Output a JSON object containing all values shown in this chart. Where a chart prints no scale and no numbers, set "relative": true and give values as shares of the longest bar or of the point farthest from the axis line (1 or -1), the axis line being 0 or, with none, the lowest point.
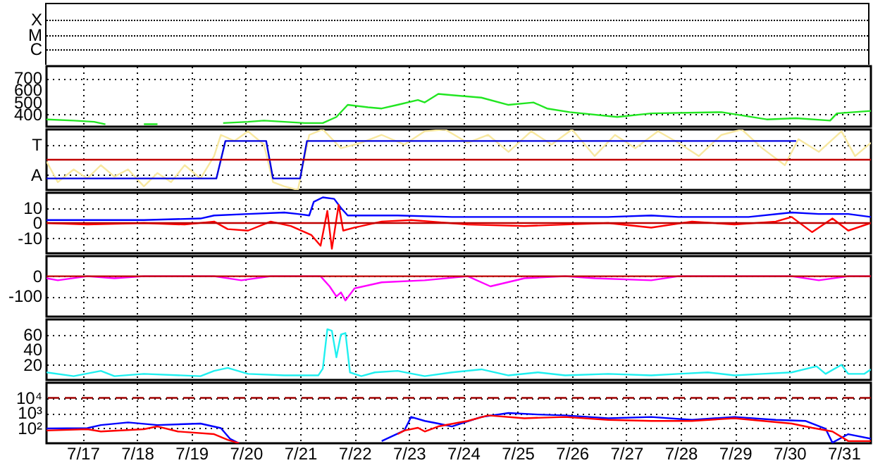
{
  "chart_data": [
    {
      "type": "other",
      "annotations": [
        "X",
        "M",
        "C"
      ]
    },
    {
      "type": "line",
      "xlim": [
        "--07-16T08:00",
        "--07-31T12:00"
      ],
      "xticks": [
        {
          "value": "--07-17",
          "label": null
        },
        {
          "value": "--07-18",
          "label": null
        },
        {
          "value": "--07-19",
          "label": null
        },
        {
          "value": "--07-20",
          "label": null
        },
        {
          "value": "--07-21",
          "label": null
        },
        {
          "value": "--07-22",
          "label": null
        },
        {
          "value": "--07-23",
          "label": null
        },
        {
          "value": "--07-24",
          "label": null
        },
        {
          "value": "--07-25",
          "label": null
        },
        {
          "value": "--07-26",
          "label": null
        },
        {
          "value": "--07-27",
          "label": null
        },
        {
          "value": "--07-28",
          "label": null
        },
        {
          "value": "--07-29",
          "label": null
        },
        {
          "value": "--07-30",
          "label": null
        },
        {
          "value": "--07-31",
          "label": null
        }
      ],
      "ylim": [
        300,
        800
      ],
      "yticks": [
        400,
        500,
        600,
        700
      ],
      "grid": true,
      "tick_labels": "y",
      "series": [
        {
          "color": "#22e622",
          "x": [
            "--07-16T08:00",
            "--07-16T20:00",
            "--07-17T05:00",
            "--07-17T10:00",
            "--07-17T19:00",
            "--07-18T03:00",
            "--07-18T09:00",
            "--07-19T00:00",
            "--07-19T14:00",
            "--07-20T01:00",
            "--07-20T08:00",
            "--07-20T17:00",
            "--07-21T02:00",
            "--07-21T10:00",
            "--07-21T16:00",
            "--07-21T21:00",
            "--07-22T06:00",
            "--07-22T12:00",
            "--07-22T19:00",
            "--07-23T04:00",
            "--07-23T07:00",
            "--07-23T13:00",
            "--07-23T19:00",
            "--07-24T08:00",
            "--07-24T20:00",
            "--07-25T07:00",
            "--07-25T13:00",
            "--07-25T23:00",
            "--07-26T20:00",
            "--07-27T11:00",
            "--07-28T18:00",
            "--07-29T14:00",
            "--07-30T03:00",
            "--07-30T18:00",
            "--07-30T21:00",
            "--07-31T12:00"
          ],
          "values": [
            360,
            350,
            340,
            320,
            null,
            320,
            320,
            null,
            330,
            340,
            350,
            340,
            330,
            330,
            380,
            480,
            460,
            450,
            480,
            520,
            500,
            570,
            560,
            540,
            480,
            500,
            450,
            420,
            380,
            410,
            420,
            360,
            370,
            350,
            410,
            430
          ]
        }
      ]
    },
    {
      "type": "line",
      "relative": true,
      "annotations": [
        "T",
        "A"
      ],
      "xlim": [
        "--07-16T08:00",
        "--07-31T12:00"
      ],
      "xticks": [
        {
          "value": "--07-17",
          "label": null
        },
        {
          "value": "--07-18",
          "label": null
        },
        {
          "value": "--07-19",
          "label": null
        },
        {
          "value": "--07-20",
          "label": null
        },
        {
          "value": "--07-21",
          "label": null
        },
        {
          "value": "--07-22",
          "label": null
        },
        {
          "value": "--07-23",
          "label": null
        },
        {
          "value": "--07-24",
          "label": null
        },
        {
          "value": "--07-25",
          "label": null
        },
        {
          "value": "--07-26",
          "label": null
        },
        {
          "value": "--07-27",
          "label": null
        },
        {
          "value": "--07-28",
          "label": null
        },
        {
          "value": "--07-29",
          "label": null
        },
        {
          "value": "--07-30",
          "label": null
        },
        {
          "value": "--07-31",
          "label": null
        }
      ],
      "grid": true,
      "tick_labels": "y",
      "ref_lines": [
        {
          "axis": "y",
          "value": 0.5,
          "color": "#c00000"
        }
      ],
      "series": [
        {
          "color": "#f8e8a0",
          "x": [
            "--07-16T08:00",
            "--07-16T13:00",
            "--07-16T20:00",
            "--07-17T02:00",
            "--07-17T08:00",
            "--07-17T14:00",
            "--07-17T20:00",
            "--07-18T03:00",
            "--07-18T09:00",
            "--07-18T15:00",
            "--07-18T21:00",
            "--07-19T04:00",
            "--07-19T10:00",
            "--07-19T13:00",
            "--07-19T19:00",
            "--07-20T01:00",
            "--07-20T08:00",
            "--07-20T12:00",
            "--07-20T17:00",
            "--07-20T23:00",
            "--07-21T04:00",
            "--07-21T10:00",
            "--07-21T18:00",
            "--07-22T03:00",
            "--07-22T12:00",
            "--07-22T22:00",
            "--07-23T07:00",
            "--07-23T16:00",
            "--07-24T02:00",
            "--07-24T11:00",
            "--07-24T20:00",
            "--07-25T06:00",
            "--07-25T15:00",
            "--07-26T00:00",
            "--07-26T10:00",
            "--07-26T19:00",
            "--07-27T04:00",
            "--07-27T14:00",
            "--07-27T23:00",
            "--07-28T08:00",
            "--07-28T18:00",
            "--07-29T03:00",
            "--07-29T12:00",
            "--07-29T22:00",
            "--07-30T04:00",
            "--07-30T13:00",
            "--07-30T23:00",
            "--07-31T05:00",
            "--07-31T12:00"
          ],
          "values": [
            0.47,
            0.13,
            0.34,
            0.19,
            0.41,
            0.22,
            0.34,
            0.06,
            0.28,
            0.13,
            0.41,
            0.19,
            0.56,
            0.91,
            0.81,
            0.97,
            0.75,
            0.13,
            0.06,
            0,
            0.91,
            1,
            0.69,
            0.78,
            0.91,
            0.75,
            0.97,
            1,
            0.78,
            0.91,
            0.63,
            0.97,
            0.75,
            1,
            0.56,
            0.91,
            0.69,
            0.97,
            0.78,
            0.56,
            0.91,
            1,
            0.69,
            0.41,
            0.84,
            0.63,
            0.97,
            0.56,
            0.78
          ]
        },
        {
          "color": "#0000e0",
          "x": [
            "--07-16T08:00",
            "--07-19T11:00",
            "--07-19T15:00",
            "--07-20T09:00",
            "--07-20T12:00",
            "--07-21T00:00",
            "--07-21T03:00",
            "--07-30T03:00"
          ],
          "values": [
            0.19,
            0.19,
            0.81,
            0.81,
            0.19,
            0.19,
            0.81,
            0.81
          ]
        }
      ]
    },
    {
      "type": "line",
      "xlim": [
        "--07-16T08:00",
        "--07-31T12:00"
      ],
      "xticks": [
        {
          "value": "--07-17",
          "label": null
        },
        {
          "value": "--07-18",
          "label": null
        },
        {
          "value": "--07-19",
          "label": null
        },
        {
          "value": "--07-20",
          "label": null
        },
        {
          "value": "--07-21",
          "label": null
        },
        {
          "value": "--07-22",
          "label": null
        },
        {
          "value": "--07-23",
          "label": null
        },
        {
          "value": "--07-24",
          "label": null
        },
        {
          "value": "--07-25",
          "label": null
        },
        {
          "value": "--07-26",
          "label": null
        },
        {
          "value": "--07-27",
          "label": null
        },
        {
          "value": "--07-28",
          "label": null
        },
        {
          "value": "--07-29",
          "label": null
        },
        {
          "value": "--07-30",
          "label": null
        },
        {
          "value": "--07-31",
          "label": null
        }
      ],
      "ylim": [
        -20,
        20
      ],
      "yticks": [
        -10,
        0,
        10
      ],
      "grid": true,
      "tick_labels": "y",
      "ref_lines": [
        {
          "axis": "y",
          "value": 0,
          "color": "#c00000"
        }
      ],
      "series": [
        {
          "color": "#0000ff",
          "x": [
            "--07-16T08:00",
            "--07-17T02:00",
            "--07-18T03:00",
            "--07-19T04:00",
            "--07-19T10:00",
            "--07-20T01:00",
            "--07-20T17:00",
            "--07-20T23:00",
            "--07-21T04:00",
            "--07-21T06:00",
            "--07-21T10:00",
            "--07-21T15:00",
            "--07-21T18:00",
            "--07-21T21:00",
            "--07-22T19:00",
            "--07-23T19:00",
            "--07-25T09:00",
            "--07-26T16:00",
            "--07-27T11:00",
            "--07-27T23:00",
            "--07-29T06:00",
            "--07-30T01:00",
            "--07-30T13:00",
            "--07-31T02:00",
            "--07-31T12:00"
          ],
          "values": [
            2,
            2,
            2,
            3,
            5,
            6,
            7,
            6,
            5,
            14,
            17,
            16,
            10,
            5,
            5,
            4,
            4,
            4,
            5,
            4,
            4,
            7,
            6,
            6,
            4
          ]
        },
        {
          "color": "#ff0000",
          "x": [
            "--07-16T08:00",
            "--07-17T02:00",
            "--07-18T03:00",
            "--07-18T21:00",
            "--07-19T10:00",
            "--07-19T16:00",
            "--07-20T01:00",
            "--07-20T11:00",
            "--07-20T20:00",
            "--07-21T05:00",
            "--07-21T09:00",
            "--07-21T12:00",
            "--07-21T14:00",
            "--07-21T17:00",
            "--07-21T19:00",
            "--07-22T00:00",
            "--07-22T12:00",
            "--07-23T01:00",
            "--07-24T02:00",
            "--07-25T03:00",
            "--07-25T21:00",
            "--07-26T16:00",
            "--07-27T11:00",
            "--07-28T05:00",
            "--07-28T23:45",
            "--07-29T18:00",
            "--07-30T01:00",
            "--07-30T10:00",
            "--07-30T19:00",
            "--07-31T02:00",
            "--07-31T12:00"
          ],
          "values": [
            0,
            -1,
            0,
            -1,
            1,
            -4,
            -5,
            1,
            -2,
            -8,
            -15,
            8,
            -17,
            12,
            -5,
            -3,
            1,
            2,
            -1,
            -2,
            -1,
            0,
            -3,
            1,
            -1,
            1,
            4,
            -6,
            3,
            -5,
            0
          ]
        }
      ]
    },
    {
      "type": "line",
      "xlim": [
        "--07-16T08:00",
        "--07-31T12:00"
      ],
      "xticks": [
        {
          "value": "--07-17",
          "label": null
        },
        {
          "value": "--07-18",
          "label": null
        },
        {
          "value": "--07-19",
          "label": null
        },
        {
          "value": "--07-20",
          "label": null
        },
        {
          "value": "--07-21",
          "label": null
        },
        {
          "value": "--07-22",
          "label": null
        },
        {
          "value": "--07-23",
          "label": null
        },
        {
          "value": "--07-24",
          "label": null
        },
        {
          "value": "--07-25",
          "label": null
        },
        {
          "value": "--07-26",
          "label": null
        },
        {
          "value": "--07-27",
          "label": null
        },
        {
          "value": "--07-28",
          "label": null
        },
        {
          "value": "--07-29",
          "label": null
        },
        {
          "value": "--07-30",
          "label": null
        },
        {
          "value": "--07-31",
          "label": null
        }
      ],
      "ylim": [
        -200,
        100
      ],
      "yticks": [
        -100,
        0
      ],
      "grid": true,
      "tick_labels": "y",
      "ref_lines": [
        {
          "axis": "y",
          "value": 0,
          "color": "#c00000"
        }
      ],
      "series": [
        {
          "color": "#ff00ff",
          "x": [
            "--07-16T08:00",
            "--07-16T13:00",
            "--07-17T02:00",
            "--07-17T14:00",
            "--07-18T03:00",
            "--07-19T10:00",
            "--07-19T22:00",
            "--07-20T11:00",
            "--07-21T09:00",
            "--07-21T13:00",
            "--07-21T16:00",
            "--07-21T18:00",
            "--07-21T20:00",
            "--07-22T00:00",
            "--07-22T12:00",
            "--07-23T07:00",
            "--07-24T02:00",
            "--07-24T12:00",
            "--07-25T03:00",
            "--07-25T21:00",
            "--07-26T10:00",
            "--07-27T11:00",
            "--07-27T23:00",
            "--07-28T18:00",
            "--07-30T01:00",
            "--07-30T13:00",
            "--07-31T02:00",
            "--07-31T12:00"
          ],
          "values": [
            -10,
            -20,
            0,
            -10,
            0,
            0,
            -20,
            0,
            0,
            -50,
            -100,
            -80,
            -120,
            -60,
            -30,
            -20,
            0,
            -50,
            -10,
            0,
            -10,
            -20,
            0,
            0,
            0,
            -20,
            0,
            0
          ]
        }
      ]
    },
    {
      "type": "line",
      "xlim": [
        "--07-16T08:00",
        "--07-31T12:00"
      ],
      "xticks": [
        {
          "value": "--07-17",
          "label": null
        },
        {
          "value": "--07-18",
          "label": null
        },
        {
          "value": "--07-19",
          "label": null
        },
        {
          "value": "--07-20",
          "label": null
        },
        {
          "value": "--07-21",
          "label": null
        },
        {
          "value": "--07-22",
          "label": null
        },
        {
          "value": "--07-23",
          "label": null
        },
        {
          "value": "--07-24",
          "label": null
        },
        {
          "value": "--07-25",
          "label": null
        },
        {
          "value": "--07-26",
          "label": null
        },
        {
          "value": "--07-27",
          "label": null
        },
        {
          "value": "--07-28",
          "label": null
        },
        {
          "value": "--07-29",
          "label": null
        },
        {
          "value": "--07-30",
          "label": null
        },
        {
          "value": "--07-31",
          "label": null
        }
      ],
      "ylim": [
        0,
        80
      ],
      "yticks": [
        20,
        40,
        60
      ],
      "grid": true,
      "tick_labels": "y",
      "series": [
        {
          "color": "#20f0f0",
          "x": [
            "--07-16T08:00",
            "--07-16T20:00",
            "--07-17T08:00",
            "--07-17T14:00",
            "--07-18T03:00",
            "--07-19T04:00",
            "--07-19T10:00",
            "--07-19T16:00",
            "--07-20T01:00",
            "--07-20T17:00",
            "--07-21T08:00",
            "--07-21T10:00",
            "--07-21T12:00",
            "--07-21T14:00",
            "--07-21T16:00",
            "--07-21T18:00",
            "--07-21T20:00",
            "--07-21T22:00",
            "--07-22T03:00",
            "--07-22T09:00",
            "--07-22T19:00",
            "--07-23T07:00",
            "--07-23T19:00",
            "--07-24T08:00",
            "--07-24T20:00",
            "--07-25T09:00",
            "--07-25T21:00",
            "--07-26T16:00",
            "--07-27T11:00",
            "--07-27T23:00",
            "--07-28T12:00",
            "--07-28T23:45",
            "--07-29T12:00",
            "--07-30T01:00",
            "--07-30T12:00",
            "--07-30T16:00",
            "--07-30T23:00",
            "--07-31T02:00",
            "--07-31T09:00",
            "--07-31T12:00"
          ],
          "values": [
            10,
            5,
            12,
            5,
            8,
            5,
            12,
            16,
            8,
            6,
            6,
            15,
            67,
            65,
            30,
            60,
            62,
            10,
            5,
            10,
            12,
            5,
            10,
            14,
            6,
            10,
            6,
            8,
            6,
            8,
            10,
            6,
            8,
            10,
            18,
            8,
            20,
            8,
            8,
            14
          ]
        }
      ]
    },
    {
      "type": "line",
      "log": true,
      "xlim": [
        "--07-16T08:00",
        "--07-31T12:00"
      ],
      "xticks": [
        {
          "value": "--07-17",
          "label": "7/17"
        },
        {
          "value": "--07-18",
          "label": "7/18"
        },
        {
          "value": "--07-19",
          "label": "7/19"
        },
        {
          "value": "--07-20",
          "label": "7/20"
        },
        {
          "value": "--07-21",
          "label": "7/21"
        },
        {
          "value": "--07-22",
          "label": "7/22"
        },
        {
          "value": "--07-23",
          "label": "7/23"
        },
        {
          "value": "--07-24",
          "label": "7/24"
        },
        {
          "value": "--07-25",
          "label": "7/25"
        },
        {
          "value": "--07-26",
          "label": "7/26"
        },
        {
          "value": "--07-27",
          "label": "7/27"
        },
        {
          "value": "--07-28",
          "label": "7/28"
        },
        {
          "value": "--07-29",
          "label": "7/29"
        },
        {
          "value": "--07-30",
          "label": "7/30"
        },
        {
          "value": "--07-31",
          "label": "7/31"
        }
      ],
      "ylim": [
        10,
        100000
      ],
      "yticks": [
        {
          "value": 100,
          "label": "10²"
        },
        {
          "value": 1000,
          "label": "10³"
        },
        {
          "value": 10000,
          "label": "10⁴"
        }
      ],
      "grid": true,
      "ref_lines": [
        {
          "axis": "y",
          "value": 10000,
          "color": "#a00000",
          "line_style": "dashed"
        }
      ],
      "series": [
        {
          "color": "#0000ff",
          "x": [
            "--07-16T08:00",
            "--07-17T02:00",
            "--07-17T08:00",
            "--07-17T20:00",
            "--07-18T09:00",
            "--07-19T04:00",
            "--07-19T13:00",
            "--07-19T17:00",
            "--07-19T21:00",
            "--07-21T00:00",
            "--07-22T12:00",
            "--07-22T22:00",
            "--07-23T01:00",
            "--07-23T07:00",
            "--07-23T13:00",
            "--07-23T19:00",
            "--07-24T08:00",
            "--07-24T20:00",
            "--07-25T09:00",
            "--07-25T21:00",
            "--07-26T16:00",
            "--07-27T11:00",
            "--07-28T05:00",
            "--07-28T23:45",
            "--07-29T18:00",
            "--07-30T07:00",
            "--07-30T16:00",
            "--07-30T19:00",
            "--07-31T02:00",
            "--07-31T12:00"
          ],
          "values": [
            95,
            100,
            160,
            240,
            160,
            200,
            100,
            20,
            10,
            null,
            14,
            70,
            550,
            300,
            200,
            130,
            550,
            1000,
            800,
            700,
            450,
            550,
            350,
            550,
            350,
            300,
            90,
            11,
            40,
            20
          ]
        },
        {
          "color": "#ff0000",
          "x": [
            "--07-16T08:00",
            "--07-17T02:00",
            "--07-17T08:00",
            "--07-18T03:00",
            "--07-18T09:00",
            "--07-18T18:00",
            "--07-19T10:00",
            "--07-19T16:00",
            "--07-19T21:00",
            "--07-21T00:00",
            "--07-22T19:00",
            "--07-22T22:00",
            "--07-23T04:00",
            "--07-23T07:00",
            "--07-23T13:00",
            "--07-24T02:00",
            "--07-24T11:00",
            "--07-25T03:00",
            "--07-25T21:00",
            "--07-26T16:00",
            "--07-27T11:00",
            "--07-28T05:00",
            "--07-28T23:45",
            "--07-30T01:00",
            "--07-30T10:00",
            "--07-30T19:00",
            "--07-31T02:00",
            "--07-31T12:00"
          ],
          "values": [
            70,
            85,
            60,
            85,
            130,
            60,
            40,
            17,
            10,
            null,
            40,
            70,
            105,
            60,
            130,
            300,
            700,
            450,
            550,
            350,
            300,
            300,
            450,
            200,
            105,
            60,
            14,
            14
          ]
        }
      ]
    }
  ]
}
